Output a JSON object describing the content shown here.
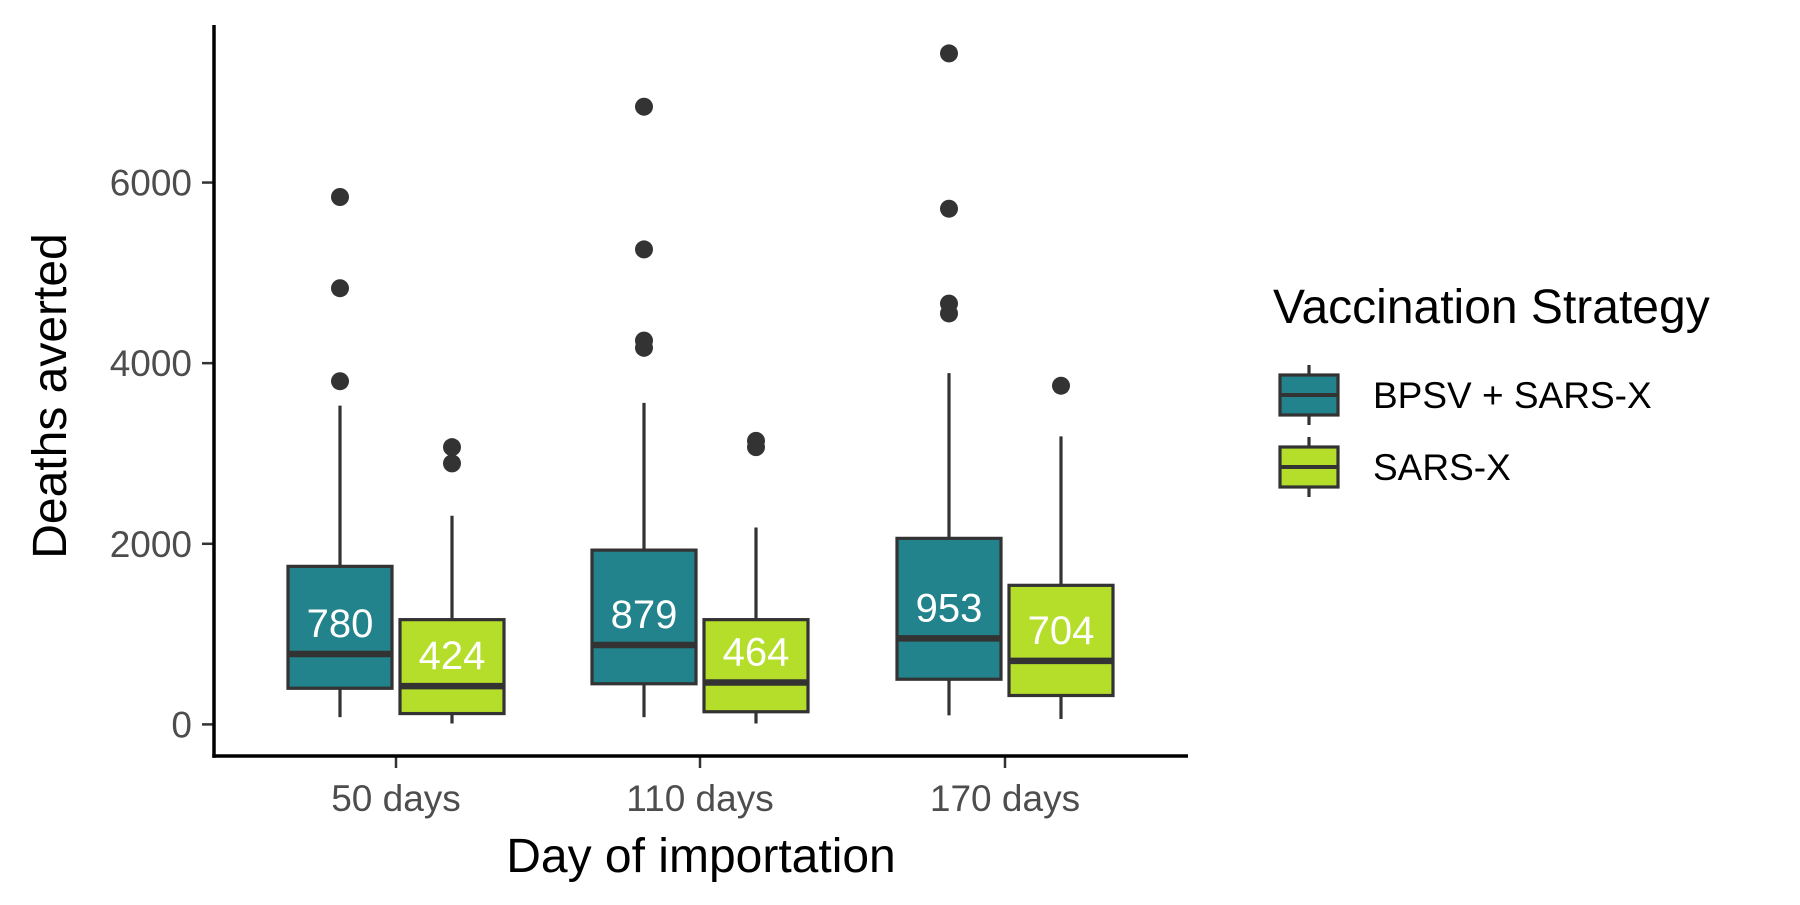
{
  "chart_data": {
    "type": "boxplot",
    "xlabel": "Day of importation",
    "ylabel": "Deaths averted",
    "ylim": [
      -350,
      7800
    ],
    "yticks": [
      0,
      2000,
      4000,
      6000
    ],
    "categories": [
      "50 days",
      "110 days",
      "170 days"
    ],
    "legend": {
      "title": "Vaccination Strategy",
      "position": "right"
    },
    "series": [
      {
        "name": "BPSV + SARS-X",
        "color": "#22838c",
        "boxes": [
          {
            "min": 80,
            "q1": 400,
            "median": 780,
            "q3": 1750,
            "max": 3530,
            "label": "780",
            "outliers": [
              3800,
              4830,
              5840
            ]
          },
          {
            "min": 80,
            "q1": 450,
            "median": 879,
            "q3": 1930,
            "max": 3560,
            "label": "879",
            "outliers": [
              4170,
              4250,
              5260,
              6840
            ]
          },
          {
            "min": 100,
            "q1": 500,
            "median": 953,
            "q3": 2060,
            "max": 3890,
            "label": "953",
            "outliers": [
              4550,
              4660,
              5710,
              7430
            ]
          }
        ]
      },
      {
        "name": "SARS-X",
        "color": "#b5de2b",
        "boxes": [
          {
            "min": 10,
            "q1": 120,
            "median": 424,
            "q3": 1160,
            "max": 2310,
            "label": "424",
            "outliers": [
              2890,
              3070
            ]
          },
          {
            "min": 10,
            "q1": 140,
            "median": 464,
            "q3": 1160,
            "max": 2180,
            "label": "464",
            "outliers": [
              3070,
              3140
            ]
          },
          {
            "min": 60,
            "q1": 320,
            "median": 704,
            "q3": 1540,
            "max": 3190,
            "label": "704",
            "outliers": [
              3750
            ]
          }
        ]
      }
    ]
  }
}
